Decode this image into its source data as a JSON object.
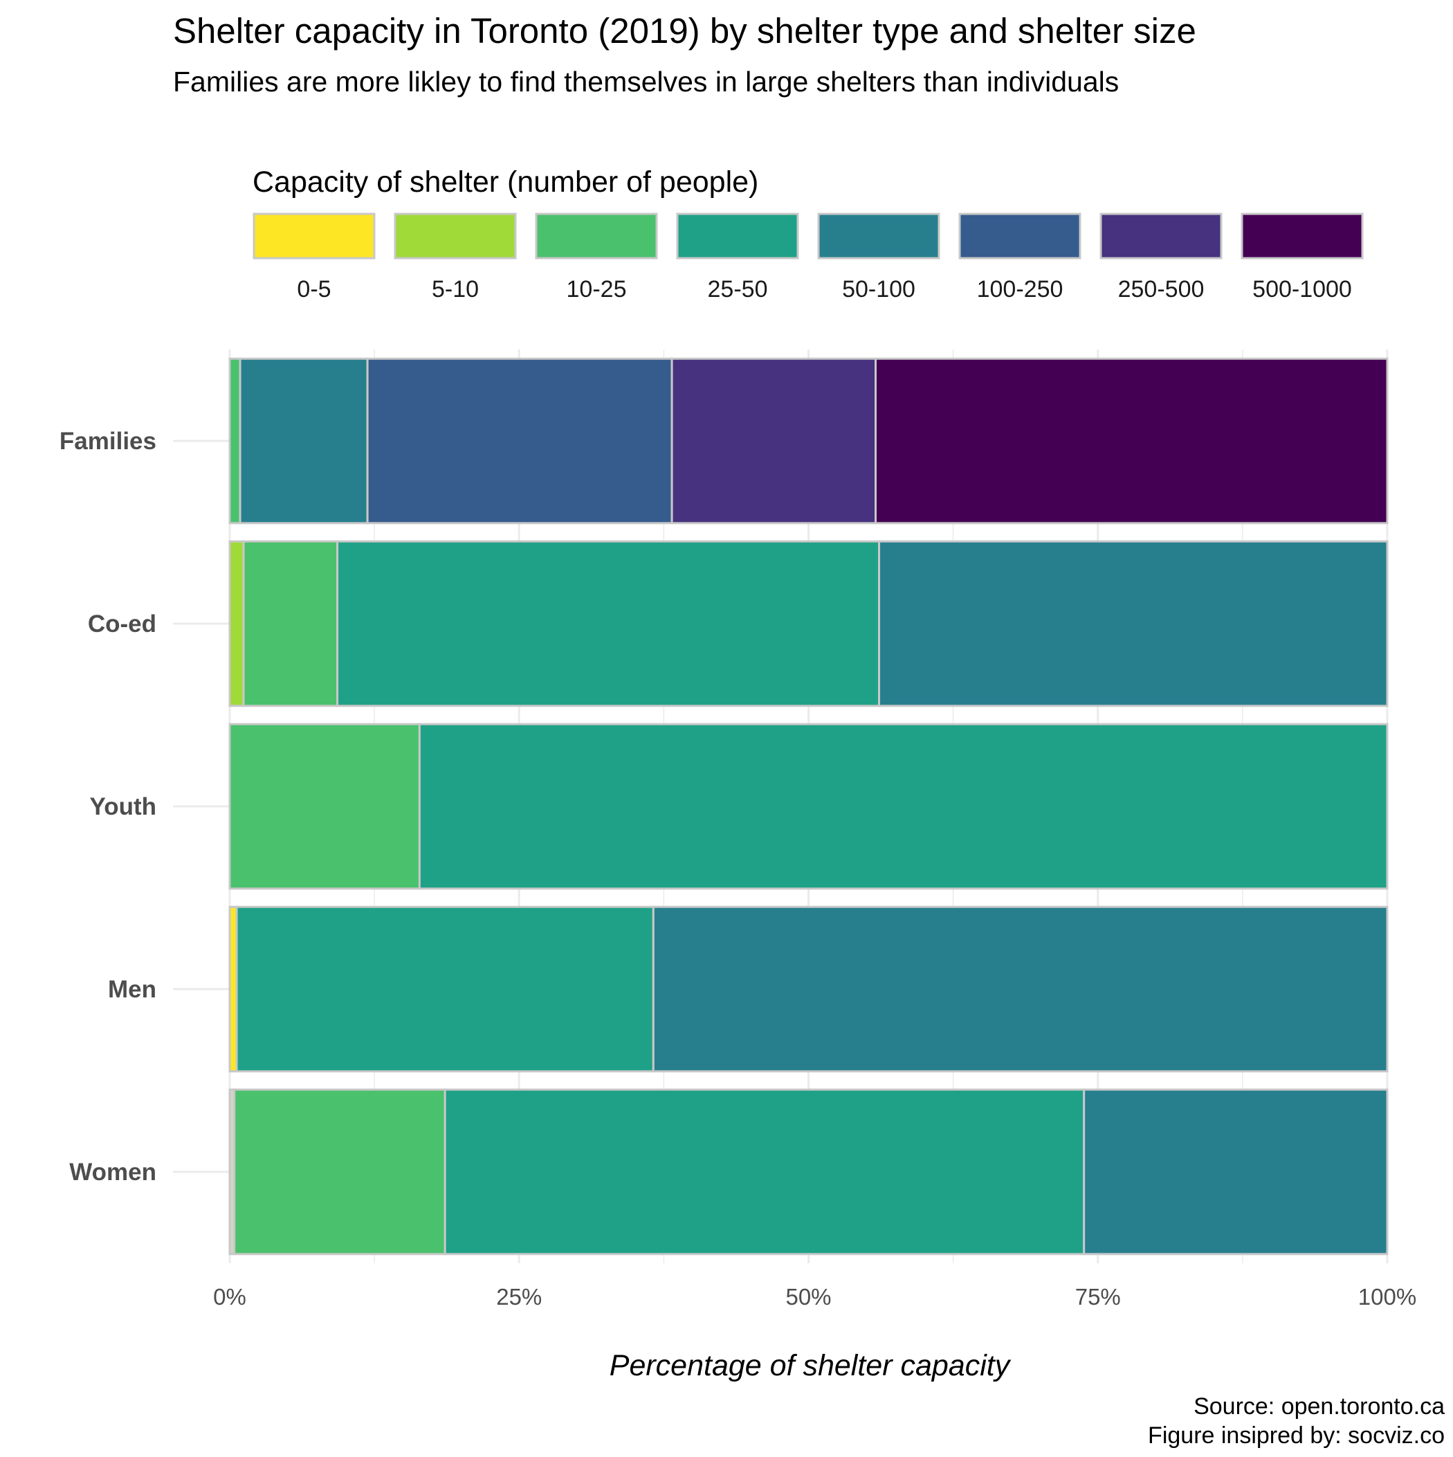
{
  "chart_data": {
    "type": "bar",
    "orientation": "horizontal",
    "stacked": true,
    "percent": true,
    "title": "Shelter capacity in Toronto (2019) by shelter type and shelter size",
    "subtitle": "Families are more likley to find themselves in large shelters than individuals",
    "xlabel": "Percentage of shelter capacity",
    "ylabel": "",
    "xlim": [
      0,
      100
    ],
    "x_ticks": [
      "0%",
      "25%",
      "50%",
      "75%",
      "100%"
    ],
    "x_tick_values": [
      0,
      25,
      50,
      75,
      100
    ],
    "categories": [
      "Families",
      "Co-ed",
      "Youth",
      "Men",
      "Women"
    ],
    "legend": {
      "title": "Capacity of shelter (number of people)",
      "position": "top"
    },
    "series": [
      {
        "name": "0-5",
        "color": "#FDE725",
        "values": [
          0,
          0,
          0,
          0.6,
          0.4
        ]
      },
      {
        "name": "5-10",
        "color": "#A0DA39",
        "values": [
          0,
          1.2,
          0,
          0,
          0
        ]
      },
      {
        "name": "10-25",
        "color": "#4AC16D",
        "values": [
          0.9,
          8.1,
          16.4,
          0,
          18.2
        ]
      },
      {
        "name": "25-50",
        "color": "#1FA187",
        "values": [
          0,
          46.8,
          83.6,
          36.0,
          55.2
        ]
      },
      {
        "name": "50-100",
        "color": "#277F8E",
        "values": [
          11.0,
          43.9,
          0,
          63.4,
          26.2
        ]
      },
      {
        "name": "100-250",
        "color": "#365C8D",
        "values": [
          26.3,
          0,
          0,
          0,
          0
        ]
      },
      {
        "name": "250-500",
        "color": "#46327E",
        "values": [
          17.6,
          0,
          0,
          0,
          0
        ]
      },
      {
        "name": "500-1000",
        "color": "#440154",
        "values": [
          44.2,
          0,
          0,
          0,
          0
        ]
      }
    ],
    "grid": true,
    "caption": [
      "Source: open.toronto.ca",
      "Figure insipred by: socviz.co"
    ]
  },
  "colors": {
    "bar_border": "#C8C8C8",
    "grid": "#EBEBEB",
    "women_first_segment": "#D4D4C0"
  }
}
